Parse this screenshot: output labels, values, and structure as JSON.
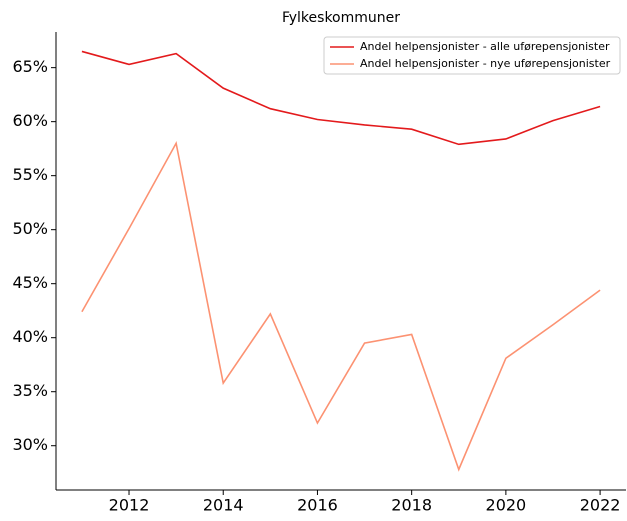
{
  "chart_data": {
    "type": "line",
    "title": "Fylkeskommuner",
    "x": [
      2011,
      2012,
      2013,
      2014,
      2015,
      2016,
      2017,
      2018,
      2019,
      2020,
      2021,
      2022
    ],
    "series": [
      {
        "name": "Andel helpensjonister - alle uførepensjonister",
        "color": "#e31a1c",
        "values": [
          66.5,
          65.3,
          66.3,
          63.1,
          61.2,
          60.2,
          59.7,
          59.3,
          57.9,
          58.4,
          60.1,
          61.4
        ]
      },
      {
        "name": "Andel helpensjonister - nye uførepensjonister",
        "color": "#fc9272",
        "values": [
          42.4,
          50.1,
          58.0,
          35.8,
          42.2,
          32.1,
          39.5,
          40.3,
          27.8,
          38.1,
          41.2,
          44.4
        ]
      }
    ],
    "xlim": [
      2010.45,
      2022.55
    ],
    "xticks": [
      2012,
      2014,
      2016,
      2018,
      2020,
      2022
    ],
    "ylim": [
      25.9,
      68.3
    ],
    "yticks": [
      {
        "value": 30,
        "label": "30%"
      },
      {
        "value": 35,
        "label": "35%"
      },
      {
        "value": 40,
        "label": "40%"
      },
      {
        "value": 45,
        "label": "45%"
      },
      {
        "value": 50,
        "label": "50%"
      },
      {
        "value": 55,
        "label": "55%"
      },
      {
        "value": 60,
        "label": "60%"
      },
      {
        "value": 65,
        "label": "65%"
      }
    ],
    "legend": "upper right",
    "grid": false
  }
}
